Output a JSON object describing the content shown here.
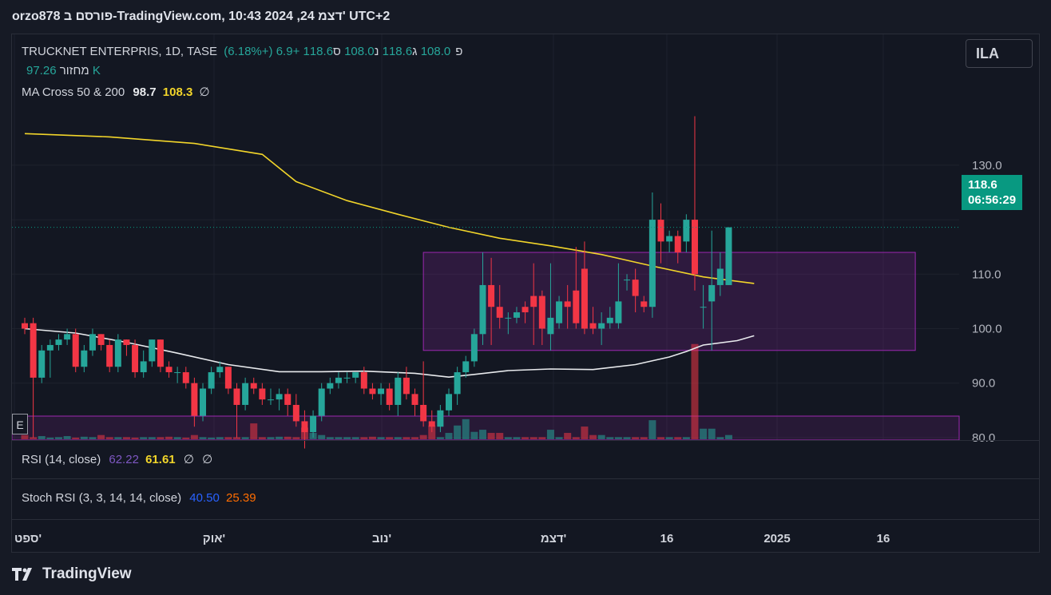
{
  "header": {
    "title": "orzo878 פורסם ב-TradingView.com, 10:43 2024 ,24 דצמ' UTC+2"
  },
  "legend": {
    "symbol": "TRUCKNET ENTERPRIS, 1D, TASE",
    "ohlc": {
      "o_label": "פ",
      "o": "108.0",
      "h_label": "ג",
      "h": "118.6",
      "l_label": "נ",
      "l": "108.0",
      "c_label": "ס",
      "c": "118.6",
      "change": "+6.9 (+6.18%)"
    },
    "volume_label": "מחזור",
    "volume_value": "97.26 K",
    "ma_label": "MA Cross 50 & 200",
    "ma_fast": "98.7",
    "ma_slow": "108.3",
    "ma_extra": "∅"
  },
  "currency_button": "ILA",
  "last_price_tag": {
    "price": "118.6",
    "countdown": "06:56:29"
  },
  "event_badge": "E",
  "rsi": {
    "label": "RSI (14, close)",
    "v1": "62.22",
    "v2": "61.61",
    "e1": "∅",
    "e2": "∅"
  },
  "stoch": {
    "label": "Stoch RSI (3, 3, 14, 14, close)",
    "v1": "40.50",
    "v2": "25.39"
  },
  "brand": "TradingView",
  "colors": {
    "up": "#26a69a",
    "down": "#f23645",
    "ma50": "#e8eaed",
    "ma200": "#f2d52a",
    "box": "#9c27b0",
    "price_tag": "#089981"
  },
  "chart_data": {
    "type": "candlestick",
    "y_axis": {
      "ticks": [
        80.0,
        90.0,
        100.0,
        110.0,
        120.0,
        130.0
      ],
      "tick_labels": [
        "80.0",
        "90.0",
        "100.0",
        "110.0",
        "",
        "130.0"
      ]
    },
    "x_axis": {
      "tick_labels": [
        "ספט'",
        "אוק'",
        "נוב'",
        "דצמ'",
        "16",
        "2025",
        "16"
      ]
    },
    "candles": [
      [
        101,
        100,
        102,
        99
      ],
      [
        101,
        91,
        102,
        80
      ],
      [
        91,
        96,
        97,
        90
      ],
      [
        96,
        97,
        98,
        91
      ],
      [
        97,
        98,
        99,
        96
      ],
      [
        98,
        99,
        100,
        97
      ],
      [
        99,
        93,
        100,
        92
      ],
      [
        93,
        96,
        97,
        92
      ],
      [
        96,
        99,
        100,
        95
      ],
      [
        99,
        97,
        99,
        96
      ],
      [
        97,
        93,
        98,
        92
      ],
      [
        93,
        98,
        99,
        92
      ],
      [
        98,
        97,
        98,
        95
      ],
      [
        97,
        92,
        98,
        91
      ],
      [
        92,
        94,
        96,
        91
      ],
      [
        94,
        98,
        98,
        93
      ],
      [
        98,
        93,
        98,
        92
      ],
      [
        93,
        92,
        94,
        91
      ],
      [
        92,
        92,
        93,
        90
      ],
      [
        92,
        90,
        93,
        89
      ],
      [
        90,
        84,
        91,
        82
      ],
      [
        84,
        89,
        90,
        83
      ],
      [
        89,
        92,
        93,
        88
      ],
      [
        92,
        93,
        94,
        91
      ],
      [
        93,
        89,
        93,
        88
      ],
      [
        89,
        86,
        90,
        80
      ],
      [
        86,
        90,
        91,
        85
      ],
      [
        90,
        89,
        91,
        88
      ],
      [
        89,
        87,
        90,
        86
      ],
      [
        87,
        87,
        89,
        86
      ],
      [
        87,
        88,
        89,
        85
      ],
      [
        88,
        86,
        89,
        84
      ],
      [
        86,
        83,
        88,
        82
      ],
      [
        83,
        81,
        85,
        78
      ],
      [
        81,
        84,
        85,
        80
      ],
      [
        84,
        89,
        90,
        83
      ],
      [
        89,
        90,
        91,
        88
      ],
      [
        90,
        91,
        92,
        89
      ],
      [
        91,
        91,
        92,
        90
      ],
      [
        91,
        92,
        92,
        90
      ],
      [
        92,
        89,
        93,
        88
      ],
      [
        89,
        88,
        90,
        87
      ],
      [
        88,
        89,
        90,
        86
      ],
      [
        89,
        86,
        90,
        85
      ],
      [
        86,
        91,
        92,
        84
      ],
      [
        91,
        88,
        93,
        87
      ],
      [
        88,
        86,
        89,
        84
      ],
      [
        86,
        83,
        94,
        82
      ],
      [
        83,
        82,
        85,
        81
      ],
      [
        82,
        85,
        86,
        81
      ],
      [
        85,
        88,
        89,
        84
      ],
      [
        88,
        92,
        93,
        86
      ],
      [
        92,
        94,
        95,
        91
      ],
      [
        94,
        99,
        100,
        93
      ],
      [
        99,
        108,
        114,
        97
      ],
      [
        108,
        104,
        113,
        97
      ],
      [
        104,
        102,
        108,
        100
      ],
      [
        102,
        102,
        103,
        99
      ],
      [
        102,
        103,
        104,
        101
      ],
      [
        104,
        103,
        105,
        101
      ],
      [
        106,
        104,
        112,
        97
      ],
      [
        106,
        100,
        107,
        97
      ],
      [
        99,
        102,
        112,
        96
      ],
      [
        101,
        105,
        106,
        100
      ],
      [
        105,
        104,
        108,
        100
      ],
      [
        107,
        101,
        115,
        100
      ],
      [
        111,
        100,
        116,
        99
      ],
      [
        101,
        100,
        104,
        99
      ],
      [
        100,
        101,
        103,
        97
      ],
      [
        101,
        102,
        104,
        100
      ],
      [
        101,
        105,
        112,
        100
      ],
      [
        109,
        109,
        110,
        107
      ],
      [
        109,
        106,
        111,
        103
      ],
      [
        105,
        104,
        106,
        103
      ],
      [
        104,
        120,
        125,
        102
      ],
      [
        120,
        116,
        123,
        112
      ],
      [
        116,
        117,
        118,
        114
      ],
      [
        117,
        114,
        118,
        112
      ],
      [
        116,
        120,
        121,
        114
      ],
      [
        120,
        110,
        139,
        107
      ],
      [
        104,
        104,
        108,
        100
      ],
      [
        105,
        108,
        118,
        96
      ],
      [
        108,
        111,
        114,
        106
      ],
      [
        108,
        118.6,
        118.6,
        108
      ]
    ],
    "volume": [
      2,
      1,
      1.5,
      0.8,
      1,
      1.5,
      0.8,
      1.2,
      1,
      2,
      1,
      1,
      1,
      0.8,
      1,
      1,
      1,
      1.2,
      1,
      0.8,
      2,
      1,
      0.8,
      1,
      1,
      1,
      1,
      7.5,
      1,
      1,
      1.2,
      1.2,
      1,
      5.5,
      3,
      2,
      1,
      1,
      1,
      1,
      1,
      1.2,
      1,
      1,
      1,
      1,
      1,
      2,
      6.5,
      1,
      3,
      6.5,
      9.5,
      3.5,
      4.5,
      3,
      3,
      1,
      1,
      1,
      1,
      1,
      4.5,
      1,
      3,
      1,
      6,
      2,
      2,
      1,
      1,
      1,
      1,
      1,
      9,
      1,
      1,
      1,
      1,
      45,
      5,
      5,
      1,
      2
    ],
    "ma50": [
      [
        0,
        100.0
      ],
      [
        6,
        99.2
      ],
      [
        12,
        97.5
      ],
      [
        18,
        95.5
      ],
      [
        24,
        93.4
      ],
      [
        30,
        92.1
      ],
      [
        35,
        92.1
      ],
      [
        40,
        92.2
      ],
      [
        46,
        91.8
      ],
      [
        50,
        91.1
      ],
      [
        53,
        91.6
      ],
      [
        57,
        92.3
      ],
      [
        62,
        92.6
      ],
      [
        67,
        92.5
      ],
      [
        72,
        93.4
      ],
      [
        76,
        94.8
      ],
      [
        78,
        95.8
      ],
      [
        80,
        97.0
      ],
      [
        84,
        97.8
      ],
      [
        86,
        98.7
      ]
    ],
    "ma200": [
      [
        0,
        135.8
      ],
      [
        10,
        135.2
      ],
      [
        20,
        134.0
      ],
      [
        24,
        133.0
      ],
      [
        28,
        132.0
      ],
      [
        32,
        127.0
      ],
      [
        38,
        123.5
      ],
      [
        44,
        121.0
      ],
      [
        50,
        118.6
      ],
      [
        56,
        116.6
      ],
      [
        62,
        115.2
      ],
      [
        68,
        113.6
      ],
      [
        74,
        111.5
      ],
      [
        80,
        109.5
      ],
      [
        86,
        108.3
      ]
    ],
    "box": {
      "x_from": 47,
      "x_to": 105,
      "y_from": 96.0,
      "y_to": 114.0
    },
    "last_price": 118.6
  }
}
